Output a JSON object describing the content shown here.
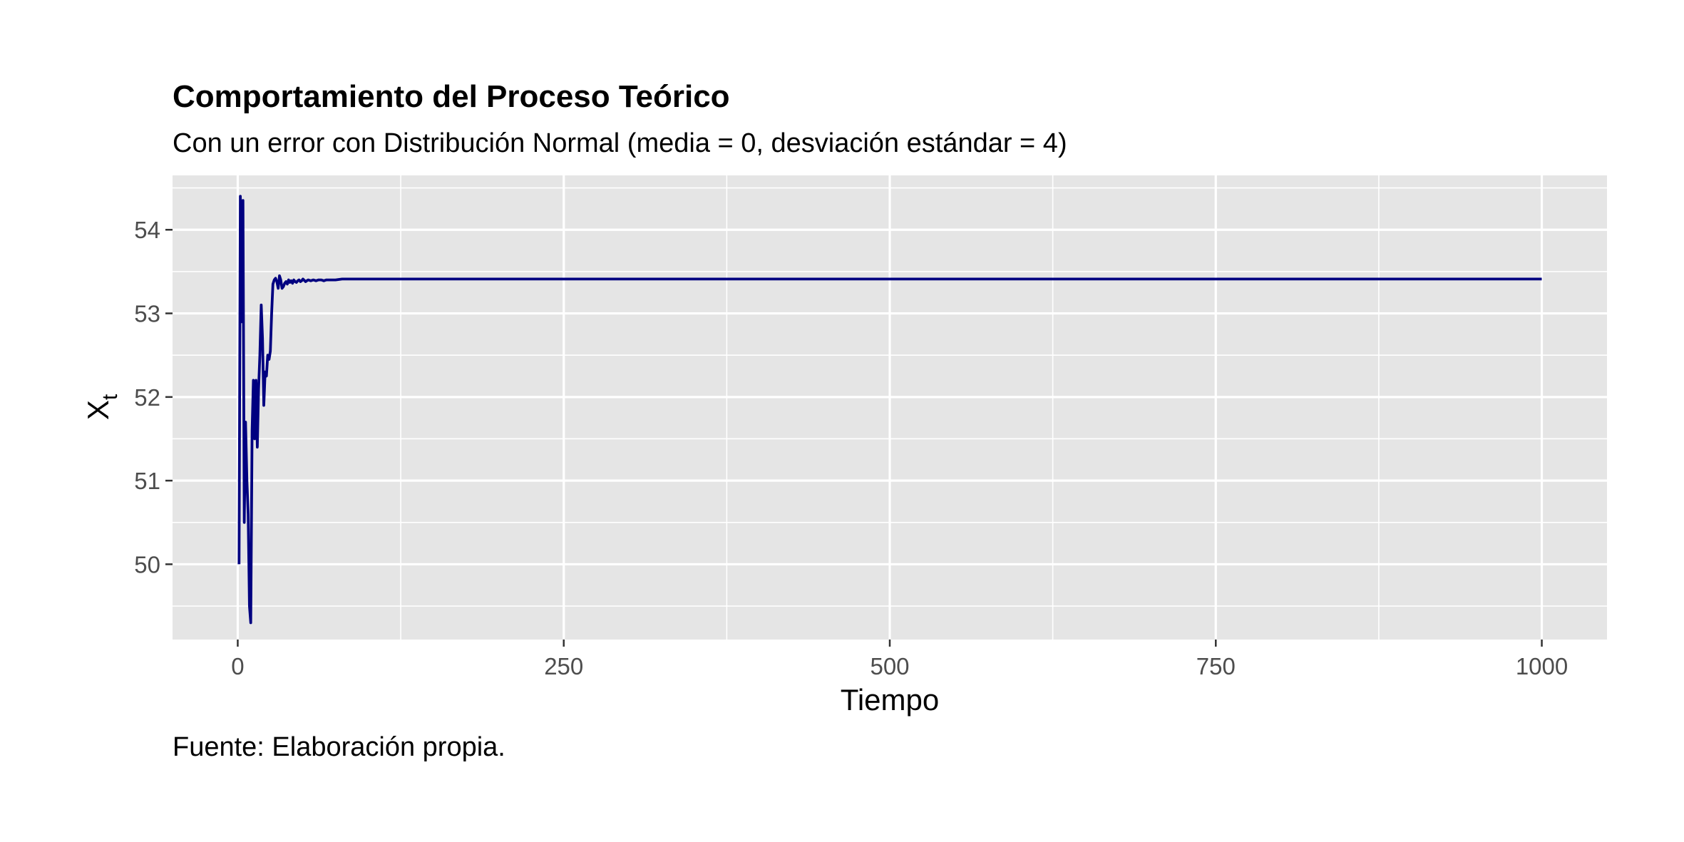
{
  "chart_data": {
    "type": "line",
    "title": "Comportamiento del Proceso Teórico",
    "subtitle": "Con un error con Distribución Normal (media = 0, desviación estándar = 4)",
    "caption": "Fuente: Elaboración propia.",
    "xlabel": "Tiempo",
    "ylabel_main": "X",
    "ylabel_sub": "t",
    "xlim": [
      -50,
      1050
    ],
    "ylim": [
      49.1,
      54.65
    ],
    "x_ticks": [
      0,
      250,
      500,
      750,
      1000
    ],
    "y_ticks": [
      50,
      51,
      52,
      53,
      54
    ],
    "grid": true,
    "colors": {
      "line": "#000080",
      "panel": "#e5e5e5",
      "grid": "#ffffff"
    },
    "series": [
      {
        "x": [
          1,
          2,
          3,
          4,
          5,
          6,
          7,
          8,
          9,
          10,
          11,
          12,
          13,
          14,
          15,
          16,
          17,
          18,
          19,
          20,
          21,
          22,
          23,
          24,
          25,
          26,
          27,
          28,
          29,
          30,
          31,
          32,
          33,
          34,
          35,
          36,
          37,
          38,
          39,
          40,
          41,
          42,
          43,
          44,
          45,
          46,
          47,
          48,
          49,
          50,
          52,
          54,
          56,
          58,
          60,
          62,
          64,
          66,
          68,
          70,
          75,
          80,
          85,
          90,
          100,
          150,
          200,
          300,
          400,
          500,
          600,
          700,
          800,
          900,
          1000
        ],
        "y": [
          50.0,
          54.4,
          52.9,
          54.35,
          50.5,
          51.7,
          51.0,
          50.6,
          49.5,
          49.3,
          51.6,
          52.2,
          51.5,
          52.2,
          51.4,
          52.1,
          52.5,
          53.1,
          52.7,
          51.9,
          52.3,
          52.25,
          52.5,
          52.45,
          52.55,
          53.0,
          53.35,
          53.4,
          53.42,
          53.38,
          53.3,
          53.45,
          53.4,
          53.3,
          53.32,
          53.36,
          53.38,
          53.35,
          53.4,
          53.37,
          53.39,
          53.36,
          53.4,
          53.38,
          53.37,
          53.39,
          53.4,
          53.38,
          53.39,
          53.41,
          53.38,
          53.4,
          53.39,
          53.4,
          53.39,
          53.4,
          53.4,
          53.39,
          53.4,
          53.4,
          53.4,
          53.41,
          53.41,
          53.41,
          53.41,
          53.41,
          53.41,
          53.41,
          53.41,
          53.41,
          53.41,
          53.41,
          53.41,
          53.41,
          53.41
        ]
      }
    ]
  }
}
